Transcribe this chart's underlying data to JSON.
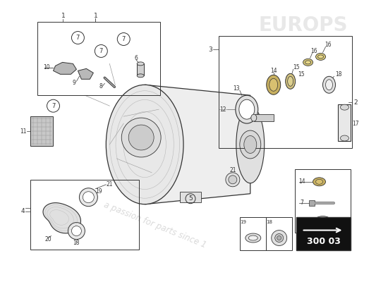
{
  "bg_color": "#ffffff",
  "lc": "#333333",
  "mg": "#999999",
  "lg": "#cccccc",
  "box_label": "300 03",
  "watermark1": "a passion for parts since 1",
  "watermark2": "EUROPS"
}
